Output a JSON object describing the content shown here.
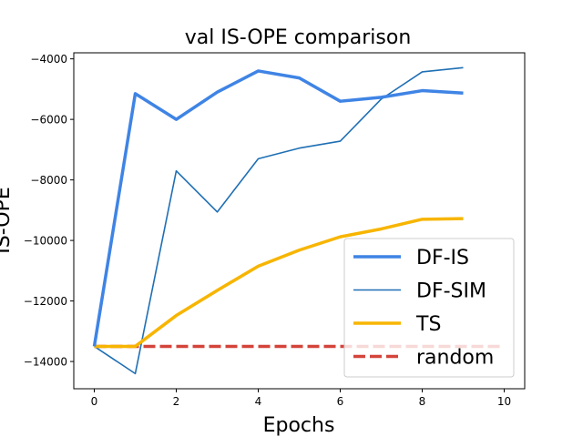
{
  "chart_data": {
    "type": "line",
    "title": "val IS-OPE comparison",
    "xlabel": "Epochs",
    "ylabel": "IS-OPE",
    "xlim": [
      -0.5,
      10.5
    ],
    "ylim": [
      -14900,
      -3800
    ],
    "xticks": [
      0,
      2,
      4,
      6,
      8,
      10
    ],
    "yticks": [
      -14000,
      -12000,
      -10000,
      -8000,
      -6000,
      -4000
    ],
    "xtick_labels": [
      "0",
      "2",
      "4",
      "6",
      "8",
      "10"
    ],
    "ytick_labels": [
      "−14000",
      "−12000",
      "−10000",
      "−8000",
      "−6000",
      "−4000"
    ],
    "grid": false,
    "legend_position": "lower-right",
    "series": [
      {
        "name": "DF-IS",
        "color": "#3f84e5",
        "style": "solid-thick",
        "x": [
          0,
          1,
          2,
          3,
          4,
          5,
          6,
          7,
          8,
          9
        ],
        "values": [
          -13500,
          -5150,
          -6000,
          -5100,
          -4400,
          -4630,
          -5400,
          -5270,
          -5050,
          -5130
        ]
      },
      {
        "name": "DF-SIM",
        "color": "#1f6fb4",
        "style": "solid-thin",
        "x": [
          0,
          1,
          2,
          3,
          4,
          5,
          6,
          7,
          8,
          9
        ],
        "values": [
          -13500,
          -14400,
          -7700,
          -9060,
          -7300,
          -6950,
          -6720,
          -5330,
          -4430,
          -4290
        ]
      },
      {
        "name": "TS",
        "color": "#f7b500",
        "style": "solid-thick",
        "x": [
          0,
          1,
          2,
          3,
          4,
          5,
          6,
          7,
          8,
          9
        ],
        "values": [
          -13500,
          -13500,
          -12480,
          -11650,
          -10850,
          -10320,
          -9880,
          -9620,
          -9300,
          -9280
        ]
      },
      {
        "name": "random",
        "color": "#d4443b",
        "style": "dashed-thick",
        "x": [
          0,
          10
        ],
        "values": [
          -13500,
          -13500
        ]
      }
    ]
  }
}
